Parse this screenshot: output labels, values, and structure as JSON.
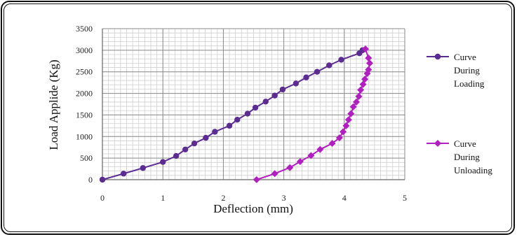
{
  "chart_data": {
    "type": "scatter",
    "title": "",
    "xlabel": "Deflection (mm)",
    "ylabel": "Load Applide (Kg)",
    "xlim": [
      0,
      5
    ],
    "ylim": [
      0,
      3500
    ],
    "x_ticks": [
      "0",
      "1",
      "2",
      "3",
      "4",
      "5"
    ],
    "y_ticks": [
      "0",
      "500",
      "1000",
      "1500",
      "2000",
      "2500",
      "3000",
      "3500"
    ],
    "grid": true,
    "legend_position": "right",
    "series": [
      {
        "name": "Curve During Loading",
        "legend_lines": [
          "Curve",
          "During",
          "Loading"
        ],
        "color": "#5b2c91",
        "marker": "circle",
        "points": [
          [
            0,
            0
          ],
          [
            0.35,
            140
          ],
          [
            0.67,
            270
          ],
          [
            1.0,
            410
          ],
          [
            1.22,
            550
          ],
          [
            1.37,
            700
          ],
          [
            1.52,
            840
          ],
          [
            1.71,
            970
          ],
          [
            1.86,
            1110
          ],
          [
            2.1,
            1250
          ],
          [
            2.23,
            1390
          ],
          [
            2.4,
            1530
          ],
          [
            2.53,
            1670
          ],
          [
            2.7,
            1810
          ],
          [
            2.85,
            1950
          ],
          [
            2.98,
            2090
          ],
          [
            3.2,
            2230
          ],
          [
            3.37,
            2370
          ],
          [
            3.55,
            2500
          ],
          [
            3.75,
            2650
          ],
          [
            3.95,
            2780
          ],
          [
            4.25,
            2930
          ],
          [
            4.3,
            3000
          ]
        ]
      },
      {
        "name": "Curve During Unloading",
        "legend_lines": [
          "Curve",
          "During",
          "Unloading"
        ],
        "color": "#b21fc0",
        "marker": "diamond",
        "points": [
          [
            4.35,
            3030
          ],
          [
            4.4,
            2820
          ],
          [
            4.42,
            2700
          ],
          [
            4.4,
            2550
          ],
          [
            4.38,
            2460
          ],
          [
            4.34,
            2330
          ],
          [
            4.31,
            2210
          ],
          [
            4.27,
            2080
          ],
          [
            4.24,
            1930
          ],
          [
            4.2,
            1800
          ],
          [
            4.15,
            1690
          ],
          [
            4.11,
            1530
          ],
          [
            4.07,
            1390
          ],
          [
            4.03,
            1250
          ],
          [
            3.98,
            1110
          ],
          [
            3.92,
            970
          ],
          [
            3.8,
            840
          ],
          [
            3.6,
            700
          ],
          [
            3.45,
            560
          ],
          [
            3.27,
            420
          ],
          [
            3.1,
            280
          ],
          [
            2.85,
            140
          ],
          [
            2.55,
            0
          ]
        ]
      }
    ]
  }
}
